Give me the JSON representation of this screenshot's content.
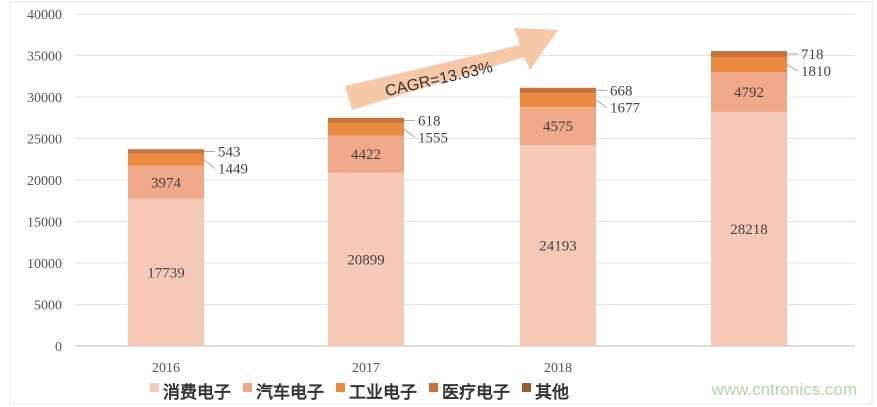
{
  "chart_data": {
    "type": "bar",
    "stacked": true,
    "categories": [
      "2016",
      "2017",
      "2018",
      ""
    ],
    "ylim": [
      0,
      40000
    ],
    "yticks": [
      0,
      5000,
      10000,
      15000,
      20000,
      25000,
      30000,
      35000,
      40000
    ],
    "grid": true,
    "legend_position": "bottom",
    "series": [
      {
        "name": "消费电子",
        "color": "#f6c8b8",
        "values": [
          17739,
          20899,
          24193,
          28218
        ]
      },
      {
        "name": "汽车电子",
        "color": "#f0a88a",
        "values": [
          3974,
          4422,
          4575,
          4792
        ]
      },
      {
        "name": "工业电子",
        "color": "#ec8a42",
        "values": [
          1449,
          1555,
          1677,
          1810
        ]
      },
      {
        "name": "医疗电子",
        "color": "#c9733c",
        "values": [
          543,
          618,
          668,
          718
        ]
      },
      {
        "name": "其他",
        "color": "#9b5a30",
        "values": [
          null,
          null,
          null,
          null
        ]
      }
    ],
    "annotation": "CAGR=13.63%"
  },
  "watermark": "www.cntronics.com"
}
